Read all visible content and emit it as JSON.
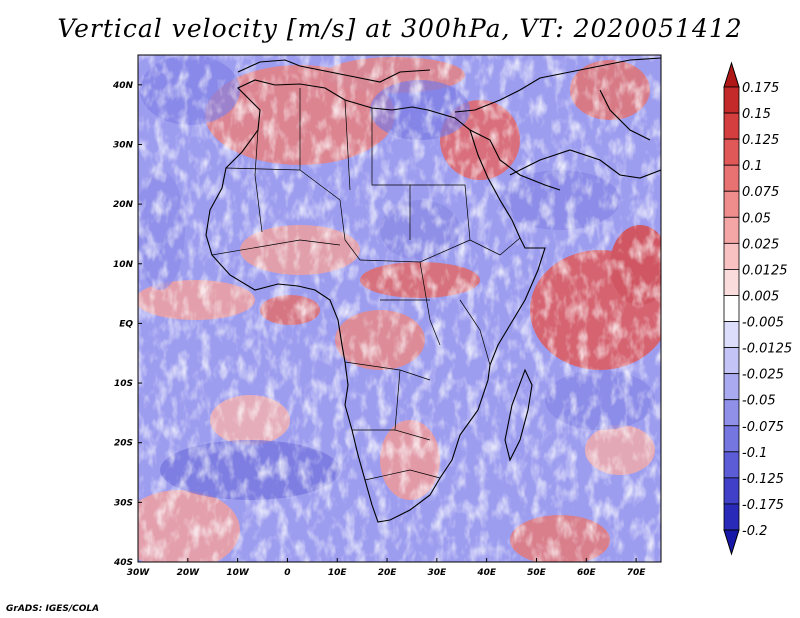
{
  "title": "Vertical velocity [m/s] at 300hPa, VT: 2020051412",
  "credit": "GrADS: IGES/COLA",
  "map": {
    "lat_labels": [
      "40N",
      "30N",
      "20N",
      "10N",
      "EQ",
      "10S",
      "20S",
      "30S",
      "40S"
    ],
    "lon_labels": [
      "30W",
      "20W",
      "10W",
      "0",
      "10E",
      "20E",
      "30E",
      "40E",
      "50E",
      "60E",
      "70E"
    ],
    "lon_range": [
      -30,
      75
    ],
    "lat_range": [
      -40,
      45
    ]
  },
  "colorbar": {
    "levels": [
      "0.175",
      "0.15",
      "0.125",
      "0.1",
      "0.075",
      "0.05",
      "0.025",
      "0.0125",
      "0.005",
      "-0.005",
      "-0.0125",
      "-0.025",
      "-0.05",
      "-0.075",
      "-0.1",
      "-0.125",
      "-0.175",
      "-0.2"
    ],
    "colors": [
      "#b01818",
      "#c42a2a",
      "#d43e3e",
      "#e05858",
      "#e87272",
      "#ef8c8c",
      "#f4a6a6",
      "#f8c2c2",
      "#fbdcdc",
      "#ffffff",
      "#dcdcfb",
      "#c4c4f6",
      "#aaaaf0",
      "#9090e8",
      "#7676e0",
      "#5c5cd6",
      "#4040c8",
      "#2a2ab8",
      "#1818a8"
    ]
  }
}
